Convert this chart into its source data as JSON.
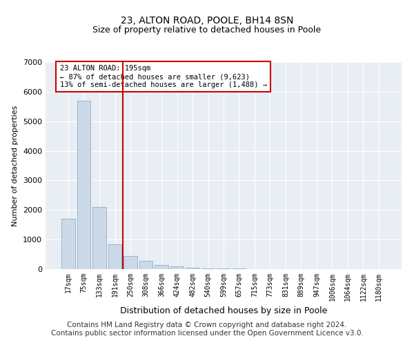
{
  "title": "23, ALTON ROAD, POOLE, BH14 8SN",
  "subtitle": "Size of property relative to detached houses in Poole",
  "xlabel": "Distribution of detached houses by size in Poole",
  "ylabel": "Number of detached properties",
  "categories": [
    "17sqm",
    "75sqm",
    "133sqm",
    "191sqm",
    "250sqm",
    "308sqm",
    "366sqm",
    "424sqm",
    "482sqm",
    "540sqm",
    "599sqm",
    "657sqm",
    "715sqm",
    "773sqm",
    "831sqm",
    "889sqm",
    "947sqm",
    "1006sqm",
    "1064sqm",
    "1122sqm",
    "1180sqm"
  ],
  "values": [
    1700,
    5700,
    2100,
    850,
    450,
    280,
    150,
    90,
    55,
    35,
    25,
    15,
    10,
    0,
    0,
    0,
    0,
    0,
    0,
    0,
    0
  ],
  "bar_color": "#ccd9e8",
  "bar_edge_color": "#8aaec8",
  "vline_color": "#cc0000",
  "vline_pos": 3.5,
  "annotation_text": "23 ALTON ROAD: 195sqm\n← 87% of detached houses are smaller (9,623)\n13% of semi-detached houses are larger (1,488) →",
  "annotation_box_facecolor": "#ffffff",
  "annotation_box_edgecolor": "#cc0000",
  "ylim": [
    0,
    7000
  ],
  "yticks": [
    0,
    1000,
    2000,
    3000,
    4000,
    5000,
    6000,
    7000
  ],
  "plot_bg_color": "#e8eef4",
  "grid_color": "#ffffff",
  "footer_line1": "Contains HM Land Registry data © Crown copyright and database right 2024.",
  "footer_line2": "Contains public sector information licensed under the Open Government Licence v3.0.",
  "title_fontsize": 10,
  "subtitle_fontsize": 9,
  "axis_label_fontsize": 8,
  "tick_fontsize": 7,
  "footer_fontsize": 7.5,
  "annotation_fontsize": 7.5
}
